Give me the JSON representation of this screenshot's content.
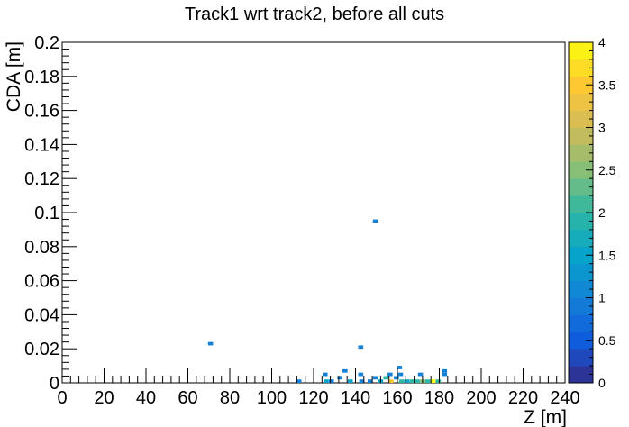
{
  "chart_data": {
    "type": "heatmap",
    "title": "Track1 wrt track2, before all cuts",
    "xlabel": "Z [m]",
    "ylabel": "CDA [m]",
    "xlim": [
      0,
      240
    ],
    "ylim": [
      0,
      0.2
    ],
    "x_ticks": [
      "0",
      "20",
      "40",
      "60",
      "80",
      "100",
      "120",
      "140",
      "160",
      "180",
      "200",
      "220",
      "240"
    ],
    "y_ticks": [
      "0",
      "0.02",
      "0.04",
      "0.06",
      "0.08",
      "0.1",
      "0.12",
      "0.14",
      "0.16",
      "0.18",
      "0.2"
    ],
    "colorbar": {
      "min": 0,
      "max": 4,
      "ticks": [
        "0",
        "0.5",
        "1",
        "1.5",
        "2",
        "2.5",
        "3",
        "3.5",
        "4"
      ]
    },
    "bin_size": {
      "x": 2.4,
      "y": 0.002
    },
    "bins": [
      {
        "x": 70.8,
        "y": 0.023,
        "value": 1
      },
      {
        "x": 149.5,
        "y": 0.095,
        "value": 1
      },
      {
        "x": 142.5,
        "y": 0.021,
        "value": 1
      },
      {
        "x": 113.0,
        "y": 0.001,
        "value": 1
      },
      {
        "x": 125.5,
        "y": 0.005,
        "value": 1
      },
      {
        "x": 126.0,
        "y": 0.001,
        "value": 1.5
      },
      {
        "x": 128.5,
        "y": 0.001,
        "value": 1
      },
      {
        "x": 132.5,
        "y": 0.003,
        "value": 1
      },
      {
        "x": 135.0,
        "y": 0.007,
        "value": 1
      },
      {
        "x": 137.5,
        "y": 0.001,
        "value": 1.5
      },
      {
        "x": 142.5,
        "y": 0.005,
        "value": 1
      },
      {
        "x": 143.0,
        "y": 0.001,
        "value": 1
      },
      {
        "x": 147.0,
        "y": 0.001,
        "value": 1
      },
      {
        "x": 149.5,
        "y": 0.003,
        "value": 1
      },
      {
        "x": 152.0,
        "y": 0.001,
        "value": 1.5
      },
      {
        "x": 154.5,
        "y": 0.003,
        "value": 2
      },
      {
        "x": 156.5,
        "y": 0.005,
        "value": 1
      },
      {
        "x": 157.0,
        "y": 0.001,
        "value": 3.5
      },
      {
        "x": 159.5,
        "y": 0.003,
        "value": 1
      },
      {
        "x": 161.0,
        "y": 0.009,
        "value": 1
      },
      {
        "x": 161.5,
        "y": 0.005,
        "value": 1
      },
      {
        "x": 162.0,
        "y": 0.001,
        "value": 2
      },
      {
        "x": 164.5,
        "y": 0.001,
        "value": 1.5
      },
      {
        "x": 167.0,
        "y": 0.001,
        "value": 2
      },
      {
        "x": 169.5,
        "y": 0.001,
        "value": 2
      },
      {
        "x": 171.0,
        "y": 0.005,
        "value": 1
      },
      {
        "x": 172.0,
        "y": 0.001,
        "value": 2.5
      },
      {
        "x": 174.5,
        "y": 0.001,
        "value": 2
      },
      {
        "x": 177.0,
        "y": 0.001,
        "value": 4
      },
      {
        "x": 179.5,
        "y": 0.001,
        "value": 2
      },
      {
        "x": 182.5,
        "y": 0.007,
        "value": 1
      },
      {
        "x": 182.5,
        "y": 0.005,
        "value": 1
      }
    ]
  }
}
